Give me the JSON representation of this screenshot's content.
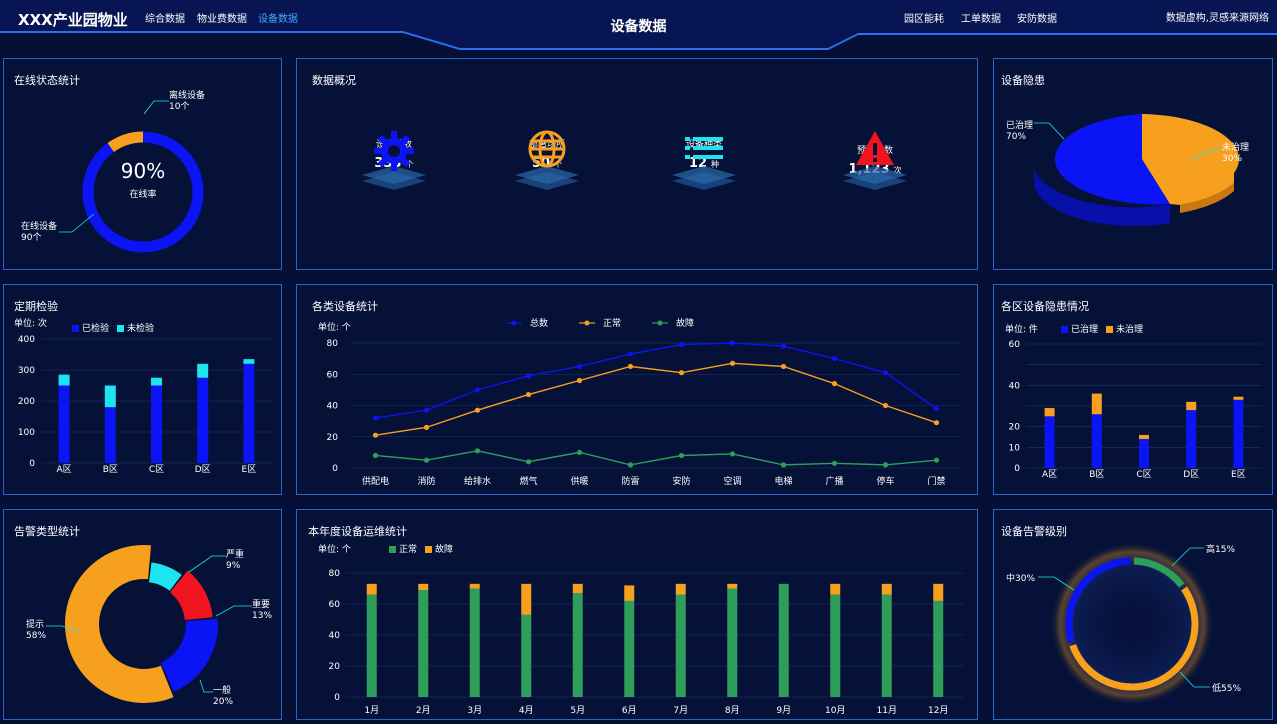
{
  "header": {
    "brand": "XXX产业园物业",
    "nav_left": [
      "综合数据",
      "物业费数据",
      "设备数据"
    ],
    "title": "设备数据",
    "nav_right": [
      "园区能耗",
      "工单数据",
      "安防数据"
    ],
    "notice": "数据虚构,灵感来源网络"
  },
  "online": {
    "title": "在线状态统计",
    "percent": "90%",
    "caption": "在线率",
    "offline_label": "离线设备",
    "offline_value": "10个",
    "online_label": "在线设备",
    "online_value": "90个",
    "chart_data": {
      "type": "pie",
      "labels": [
        "在线设备",
        "离线设备"
      ],
      "values": [
        90,
        10
      ],
      "colors": [
        "#0a14f5",
        "#f7a01e"
      ]
    }
  },
  "overview": {
    "title": "数据概况",
    "items": [
      {
        "icon": "gear-icon",
        "label": "设备总数",
        "value": "333",
        "unit": "个"
      },
      {
        "icon": "globe-icon",
        "label": "部署场所",
        "value": "50",
        "unit": "个"
      },
      {
        "icon": "list-icon",
        "label": "设备种类",
        "value": "12",
        "unit": "种"
      },
      {
        "icon": "warning-icon",
        "label": "预警总数",
        "value": "1,123",
        "unit": "次"
      }
    ]
  },
  "hazard": {
    "title": "设备隐患",
    "label_a": "已治理",
    "value_a": "70%",
    "label_b": "未治理",
    "value_b": "30%",
    "chart_data": {
      "type": "pie",
      "labels": [
        "已治理",
        "未治理"
      ],
      "values": [
        70,
        30
      ],
      "colors": [
        "#0a14f5",
        "#f7a01e"
      ]
    }
  },
  "inspection": {
    "title": "定期检验",
    "unit": "单位: 次",
    "chart_data": {
      "type": "bar",
      "stacked": true,
      "categories": [
        "A区",
        "B区",
        "C区",
        "D区",
        "E区"
      ],
      "series": [
        {
          "name": "已检验",
          "color": "#0a14f5",
          "values": [
            250,
            180,
            250,
            275,
            320
          ]
        },
        {
          "name": "未检验",
          "color": "#1de5f0",
          "values": [
            35,
            70,
            25,
            45,
            15
          ]
        }
      ],
      "ylim": [
        0,
        400
      ],
      "yticks": [
        0,
        100,
        200,
        300,
        400
      ]
    }
  },
  "device_stats": {
    "title": "各类设备统计",
    "unit": "单位: 个",
    "chart_data": {
      "type": "line",
      "categories": [
        "供配电",
        "消防",
        "给排水",
        "燃气",
        "供暖",
        "防雷",
        "安防",
        "空调",
        "电梯",
        "广播",
        "停车",
        "门禁"
      ],
      "series": [
        {
          "name": "总数",
          "color": "#0a14f5",
          "values": [
            32,
            37,
            50,
            59,
            65,
            73,
            79,
            80,
            78,
            70,
            61,
            38
          ]
        },
        {
          "name": "正常",
          "color": "#f7a01e",
          "values": [
            21,
            26,
            37,
            47,
            56,
            65,
            61,
            67,
            65,
            54,
            40,
            29
          ]
        },
        {
          "name": "故障",
          "color": "#2e9e5b",
          "values": [
            8,
            5,
            11,
            4,
            10,
            2,
            8,
            9,
            2,
            3,
            2,
            5
          ]
        }
      ],
      "ylim": [
        0,
        80
      ],
      "yticks": [
        0,
        20,
        40,
        60,
        80
      ]
    }
  },
  "area_hazard": {
    "title": "各区设备隐患情况",
    "unit": "单位: 件",
    "chart_data": {
      "type": "bar",
      "stacked": true,
      "categories": [
        "A区",
        "B区",
        "C区",
        "D区",
        "E区"
      ],
      "series": [
        {
          "name": "已治理",
          "color": "#0a14f5",
          "values": [
            25,
            26,
            14,
            28,
            33
          ]
        },
        {
          "name": "未治理",
          "color": "#f7a01e",
          "values": [
            4,
            10,
            2,
            4,
            1.5
          ]
        }
      ],
      "ylim": [
        0,
        60
      ],
      "yticks": [
        0,
        10,
        20,
        30,
        40,
        50,
        60
      ],
      "ytick_labels": [
        "0",
        "10",
        "20",
        "",
        "40",
        "",
        "60"
      ]
    }
  },
  "alarm_type": {
    "title": "告警类型统计",
    "labels": [
      {
        "name": "提示",
        "pct": "58%"
      },
      {
        "name": "严重",
        "pct": "9%"
      },
      {
        "name": "重要",
        "pct": "13%"
      },
      {
        "name": "一般",
        "pct": "20%"
      }
    ],
    "chart_data": {
      "type": "pie",
      "labels": [
        "提示",
        "严重",
        "重要",
        "一般"
      ],
      "values": [
        58,
        9,
        13,
        20
      ],
      "colors": [
        "#f7a01e",
        "#1de5f0",
        "#f0141e",
        "#0a14f5"
      ]
    }
  },
  "maintenance": {
    "title": "本年度设备运维统计",
    "unit": "单位: 个",
    "chart_data": {
      "type": "bar",
      "stacked": true,
      "categories": [
        "1月",
        "2月",
        "3月",
        "4月",
        "5月",
        "6月",
        "7月",
        "8月",
        "9月",
        "10月",
        "11月",
        "12月"
      ],
      "series": [
        {
          "name": "正常",
          "color": "#2e9e5b",
          "values": [
            66,
            69,
            70,
            53,
            67,
            62,
            66,
            70,
            73,
            66,
            66,
            62
          ]
        },
        {
          "name": "故障",
          "color": "#f7a01e",
          "values": [
            7,
            4,
            3,
            20,
            6,
            10,
            7,
            3,
            0,
            7,
            7,
            11
          ]
        }
      ],
      "ylim": [
        0,
        80
      ],
      "yticks": [
        0,
        20,
        40,
        60,
        80
      ]
    }
  },
  "alarm_level": {
    "title": "设备告警级别",
    "labels": [
      {
        "name": "高",
        "pct": "15%"
      },
      {
        "name": "中",
        "pct": "30%"
      },
      {
        "name": "低",
        "pct": "55%"
      }
    ],
    "chart_data": {
      "type": "pie",
      "labels": [
        "高",
        "中",
        "低"
      ],
      "values": [
        15,
        30,
        55
      ],
      "colors": [
        "#2e9e5b",
        "#0a14f5",
        "#f7a01e"
      ]
    }
  }
}
